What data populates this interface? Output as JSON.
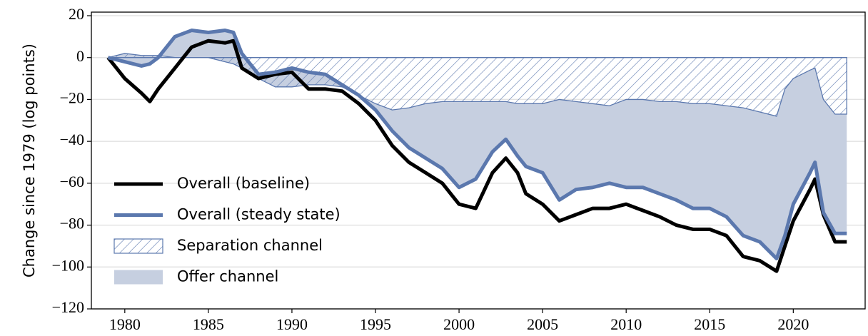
{
  "chart_data": {
    "type": "line",
    "y_label": "Change since 1979 (log points)",
    "x": [
      1979,
      1980,
      1981,
      1981.5,
      1982,
      1983,
      1984,
      1985,
      1986,
      1986.5,
      1987,
      1988,
      1989,
      1990,
      1991,
      1992,
      1993,
      1994,
      1995,
      1996,
      1997,
      1998,
      1999,
      2000,
      2001,
      2002,
      2002.8,
      2003.5,
      2004,
      2005,
      2006,
      2007,
      2008,
      2009,
      2010,
      2011,
      2012,
      2013,
      2014,
      2015,
      2016,
      2017,
      2018,
      2019,
      2019.5,
      2020,
      2021,
      2021.3,
      2021.8,
      2022.5,
      2023.2
    ],
    "series": [
      {
        "name": "Overall (baseline)",
        "color": "#000000",
        "style": "line",
        "values": [
          0,
          -10,
          -17,
          -21,
          -15,
          -5,
          5,
          8,
          7,
          8,
          -5,
          -10,
          -8,
          -7,
          -15,
          -15,
          -16,
          -22,
          -30,
          -42,
          -50,
          -55,
          -60,
          -70,
          -72,
          -55,
          -48,
          -55,
          -65,
          -70,
          -78,
          -75,
          -72,
          -72,
          -70,
          -73,
          -76,
          -80,
          -82,
          -82,
          -85,
          -95,
          -97,
          -102,
          -90,
          -78,
          -63,
          -58,
          -75,
          -88,
          -88
        ]
      },
      {
        "name": "Overall (steady state)",
        "color": "#5b78ae",
        "style": "line",
        "values": [
          0,
          -2,
          -4,
          -3,
          0,
          10,
          13,
          12,
          13,
          12,
          2,
          -8,
          -7,
          -5,
          -7,
          -8,
          -13,
          -18,
          -25,
          -35,
          -43,
          -48,
          -53,
          -62,
          -58,
          -45,
          -39,
          -47,
          -52,
          -55,
          -68,
          -63,
          -62,
          -60,
          -62,
          -62,
          -65,
          -68,
          -72,
          -72,
          -76,
          -85,
          -88,
          -96,
          -85,
          -70,
          -55,
          -50,
          -74,
          -84,
          -84
        ]
      },
      {
        "name": "Separation channel",
        "color": "#5b78ae",
        "style": "hatch",
        "values": [
          0,
          2,
          1,
          1,
          1,
          0,
          0,
          0,
          -2,
          -3,
          -5,
          -10,
          -14,
          -14,
          -13,
          -13,
          -14,
          -18,
          -22,
          -25,
          -24,
          -22,
          -21,
          -21,
          -21,
          -21,
          -21,
          -22,
          -22,
          -22,
          -20,
          -21,
          -22,
          -23,
          -20,
          -20,
          -21,
          -21,
          -22,
          -22,
          -23,
          -24,
          -26,
          -28,
          -15,
          -10,
          -6,
          -5,
          -20,
          -27,
          -27
        ]
      },
      {
        "name": "Offer channel",
        "color": "#c6cfe0",
        "style": "fill",
        "values": [
          0,
          -4,
          -5,
          -4,
          -1,
          10,
          13,
          12,
          15,
          15,
          7,
          2,
          7,
          9,
          6,
          5,
          1,
          0,
          -3,
          -10,
          -19,
          -26,
          -32,
          -41,
          -37,
          -24,
          -18,
          -25,
          -30,
          -33,
          -48,
          -42,
          -40,
          -37,
          -42,
          -42,
          -44,
          -47,
          -50,
          -50,
          -53,
          -61,
          -62,
          -68,
          -70,
          -60,
          -49,
          -45,
          -54,
          -57,
          -57
        ]
      }
    ],
    "stacked_areas": true,
    "xlim": [
      1978.0,
      2024.3
    ],
    "xticks": [
      1980,
      1985,
      1990,
      1995,
      2000,
      2005,
      2010,
      2015,
      2020
    ],
    "ylim": [
      -120,
      21.7
    ],
    "yticks": [
      {
        "value": -120,
        "label": "−120"
      },
      {
        "value": -100,
        "label": "−100"
      },
      {
        "value": -80,
        "label": "−80"
      },
      {
        "value": -60,
        "label": "−60"
      },
      {
        "value": -40,
        "label": "−40"
      },
      {
        "value": -20,
        "label": "−20"
      },
      0,
      20
    ],
    "grid": true,
    "legend": "lower left"
  }
}
